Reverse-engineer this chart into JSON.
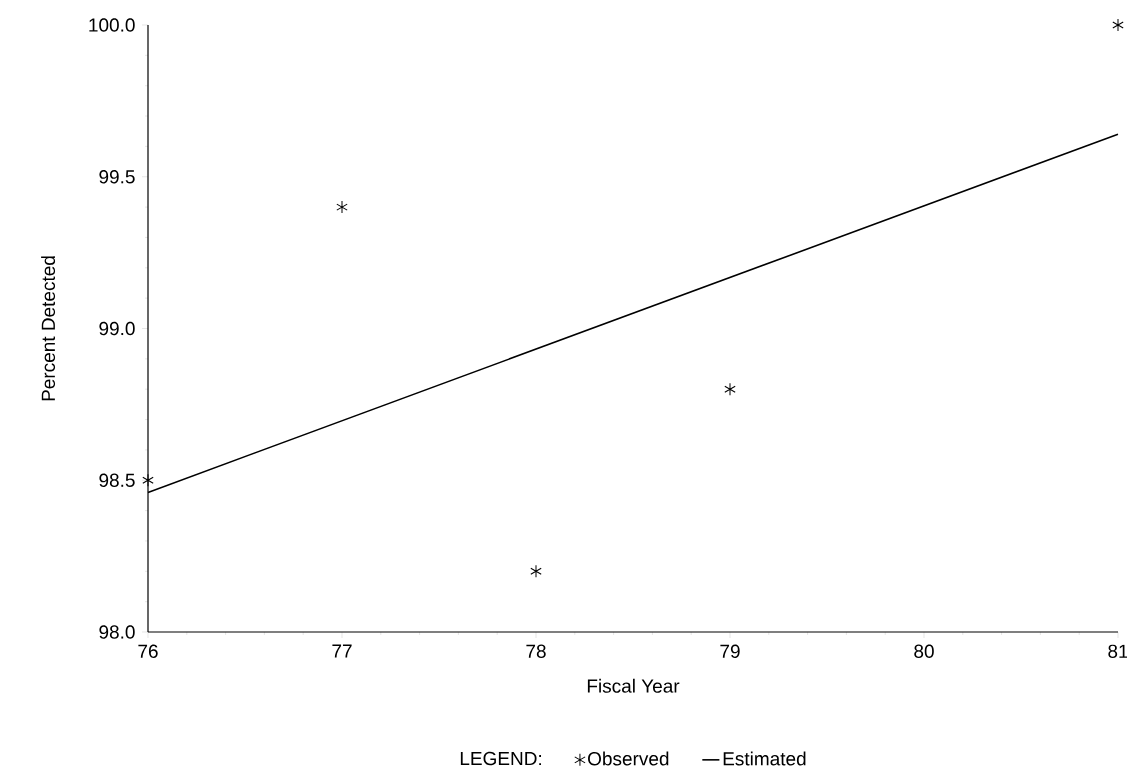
{
  "chart_data": {
    "type": "scatter",
    "xlabel": "Fiscal Year",
    "ylabel": "Percent Detected",
    "legend_title": "LEGEND:",
    "legend": "bottom",
    "xlim": [
      76,
      81
    ],
    "ylim": [
      98,
      100
    ],
    "xticks": [
      76,
      77,
      78,
      79,
      80,
      81
    ],
    "yticks": [
      {
        "value": 98,
        "label": "98.0"
      },
      {
        "value": 98.5,
        "label": "98.5"
      },
      {
        "value": 99,
        "label": "99.0"
      },
      {
        "value": 99.5,
        "label": "99.5"
      },
      {
        "value": 100,
        "label": "100.0"
      }
    ],
    "series": [
      {
        "name": "Observed",
        "marker": "cross",
        "color": "#000000",
        "x": [
          76,
          77,
          78,
          79,
          81
        ],
        "values": [
          98.5,
          99.4,
          98.2,
          98.8,
          100.0
        ]
      },
      {
        "name": "Estimated",
        "type": "line",
        "marker": "none",
        "color": "#000000",
        "x": [
          76,
          81
        ],
        "values": [
          98.46,
          99.64
        ]
      }
    ]
  }
}
